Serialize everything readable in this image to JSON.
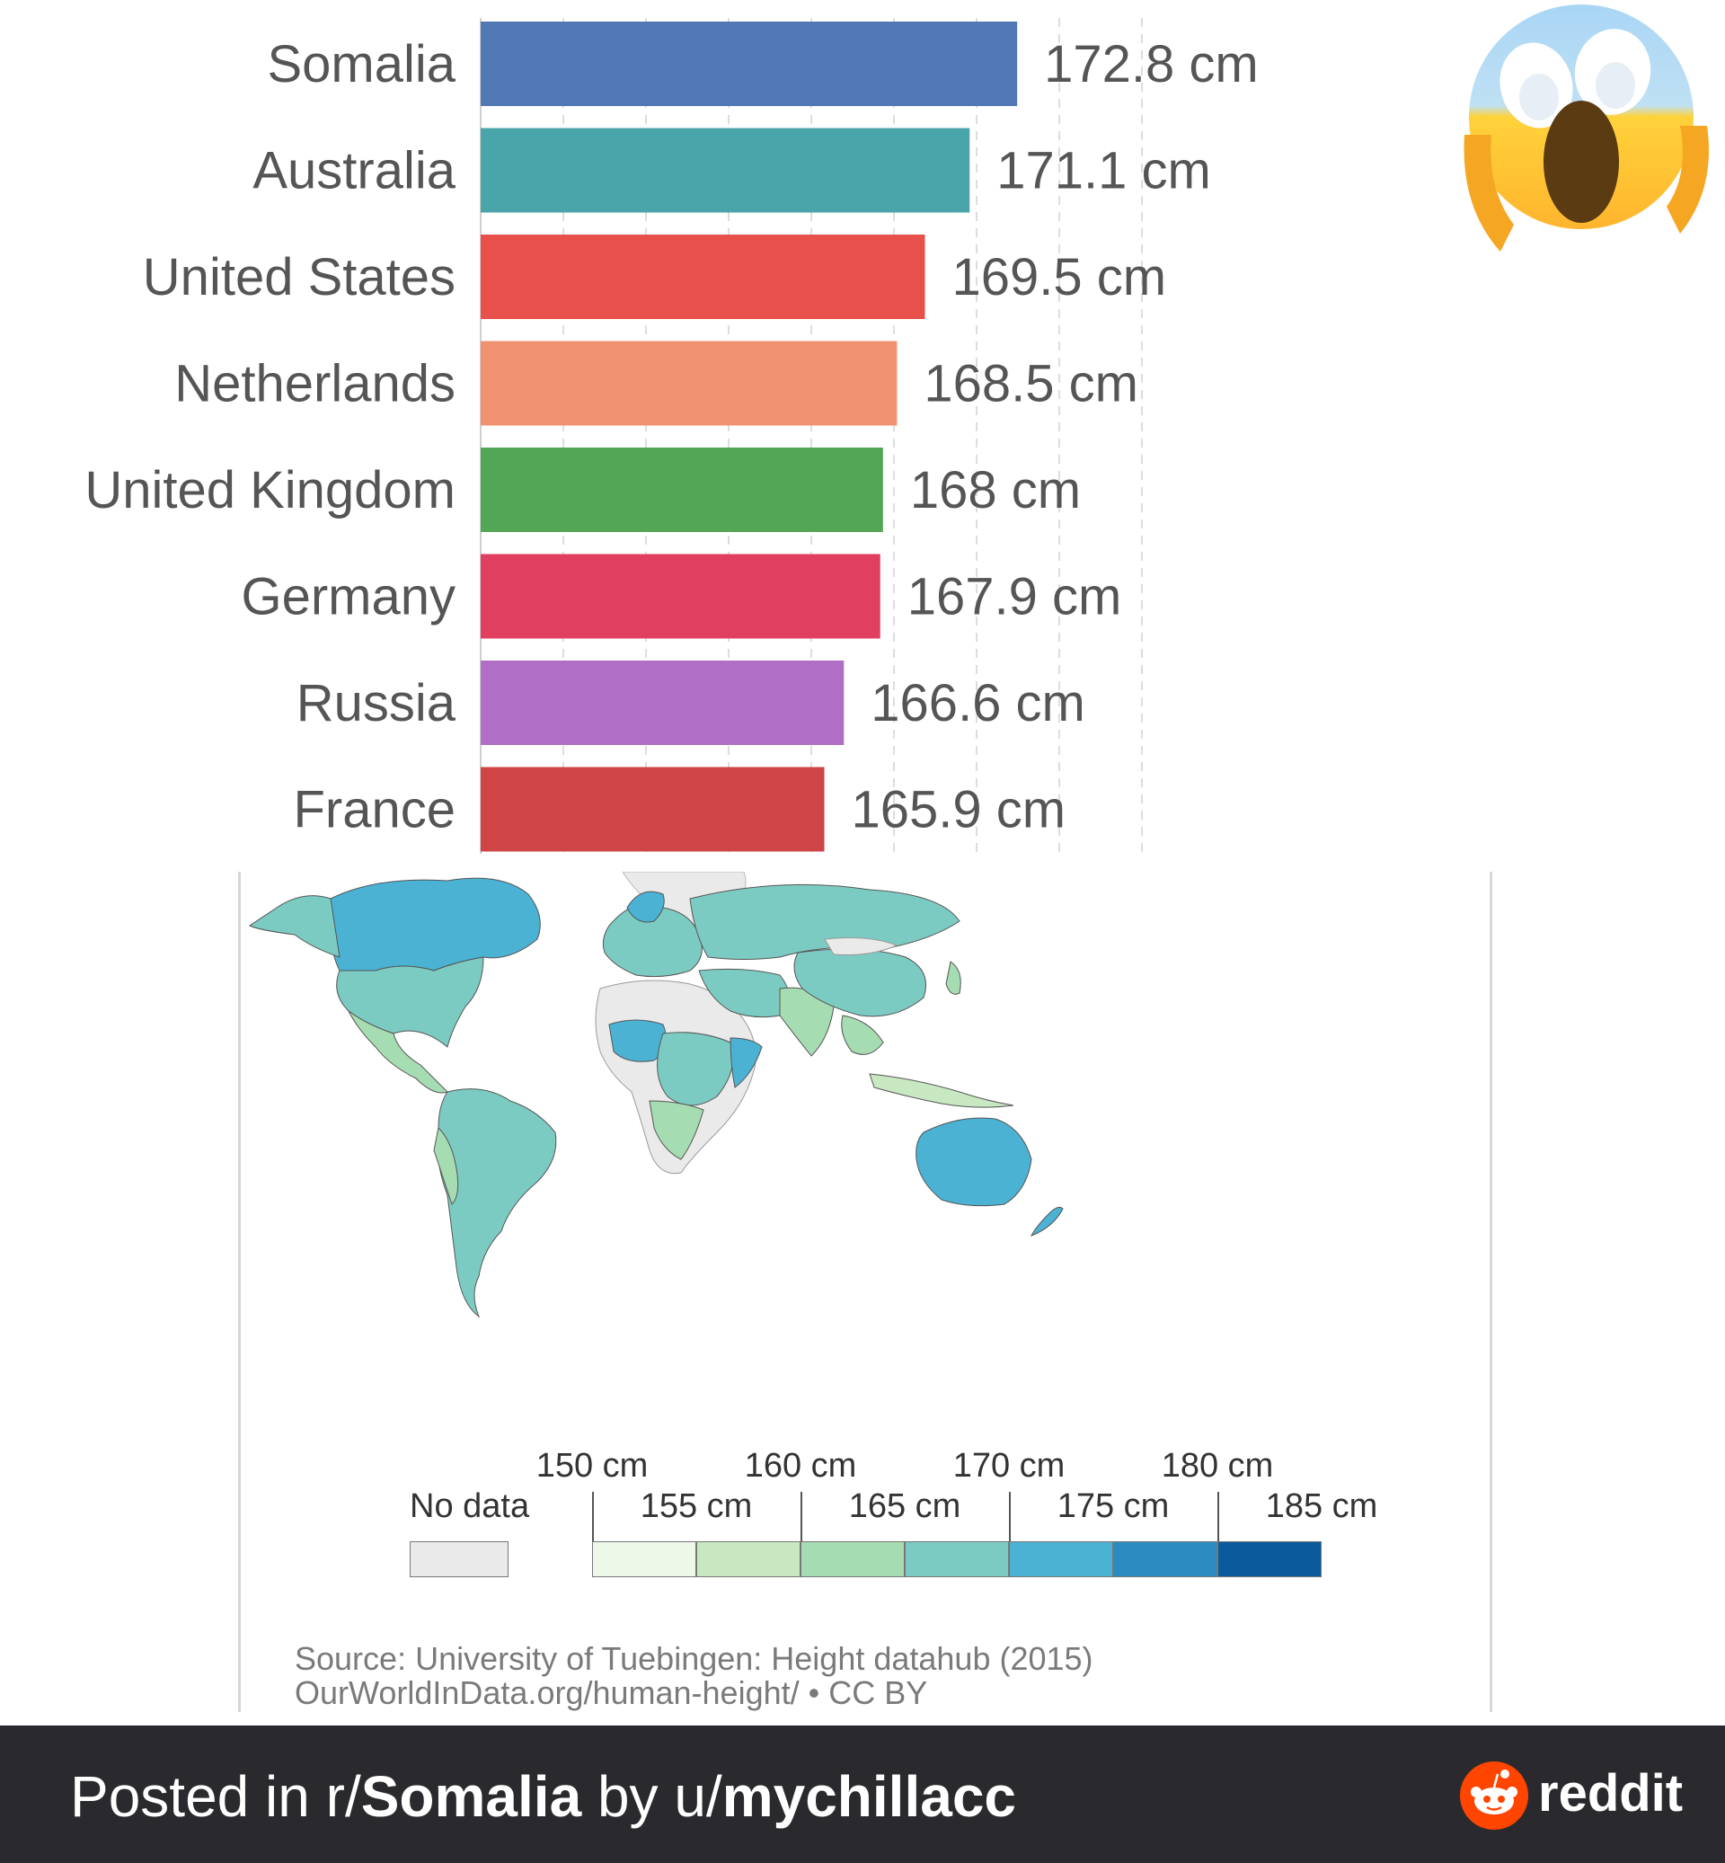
{
  "chart_data": {
    "type": "bar",
    "orientation": "horizontal",
    "categories": [
      "Somalia",
      "Australia",
      "United States",
      "Netherlands",
      "United Kingdom",
      "Germany",
      "Russia",
      "France"
    ],
    "values": [
      172.8,
      171.1,
      169.5,
      168.5,
      168,
      167.9,
      166.6,
      165.9
    ],
    "value_labels": [
      "172.8 cm",
      "171.1 cm",
      "169.5 cm",
      "168.5 cm",
      "168 cm",
      "167.9 cm",
      "166.6 cm",
      "165.9 cm"
    ],
    "colors": [
      "#5177b4",
      "#4aa5aa",
      "#e8504c",
      "#f0916f",
      "#53a655",
      "#e03f5f",
      "#b06fc4",
      "#cf4545"
    ],
    "grid": true
  },
  "map": {
    "legend": {
      "nodata_label": "No data",
      "upper_labels": [
        "150 cm",
        "160 cm",
        "170 cm",
        "180 cm"
      ],
      "lower_labels": [
        "155 cm",
        "165 cm",
        "175 cm",
        "185 cm"
      ],
      "colors": [
        "#eef8e8",
        "#c8e8c2",
        "#a6dcb1",
        "#7ccbc2",
        "#4bb2d4",
        "#2b8cc2",
        "#0a5a9c"
      ],
      "nodata_color": "#eaeaea"
    },
    "source": "Source: University of Tuebingen: Height datahub (2015)",
    "source_url": "OurWorldInData.org/human-height/ • CC BY"
  },
  "footer": {
    "posted_in": "Posted in r/",
    "subreddit": "Somalia",
    "by": " by u/",
    "user": "mychillacc",
    "brand": "reddit"
  }
}
